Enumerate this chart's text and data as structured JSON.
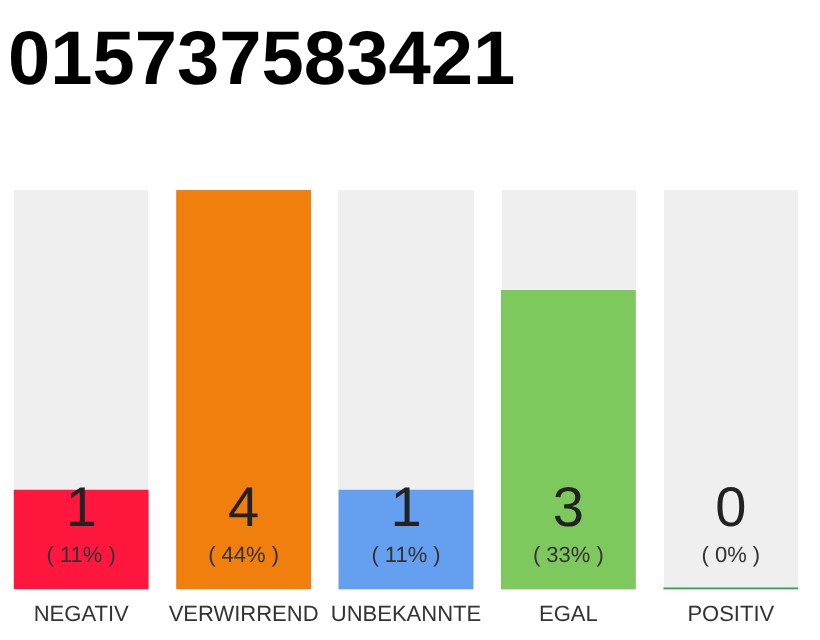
{
  "chart_data": {
    "type": "bar",
    "title": "015737583421",
    "categories": [
      "NEGATIV",
      "VERWIRREND",
      "UNBEKANNTE",
      "EGAL",
      "POSITIV"
    ],
    "values": [
      1,
      4,
      1,
      3,
      0
    ],
    "colors": [
      "#ff173d",
      "#f07f0e",
      "#659ff0",
      "#7ec95e",
      "#2ea84a"
    ],
    "value_labels": [
      "1\n( 11% )",
      "4\n( 44% )",
      "1\n( 11% )",
      "3\n( 33% )",
      "0\n( 0% )"
    ],
    "tick_labels": "x",
    "grid": false,
    "legend": false
  }
}
